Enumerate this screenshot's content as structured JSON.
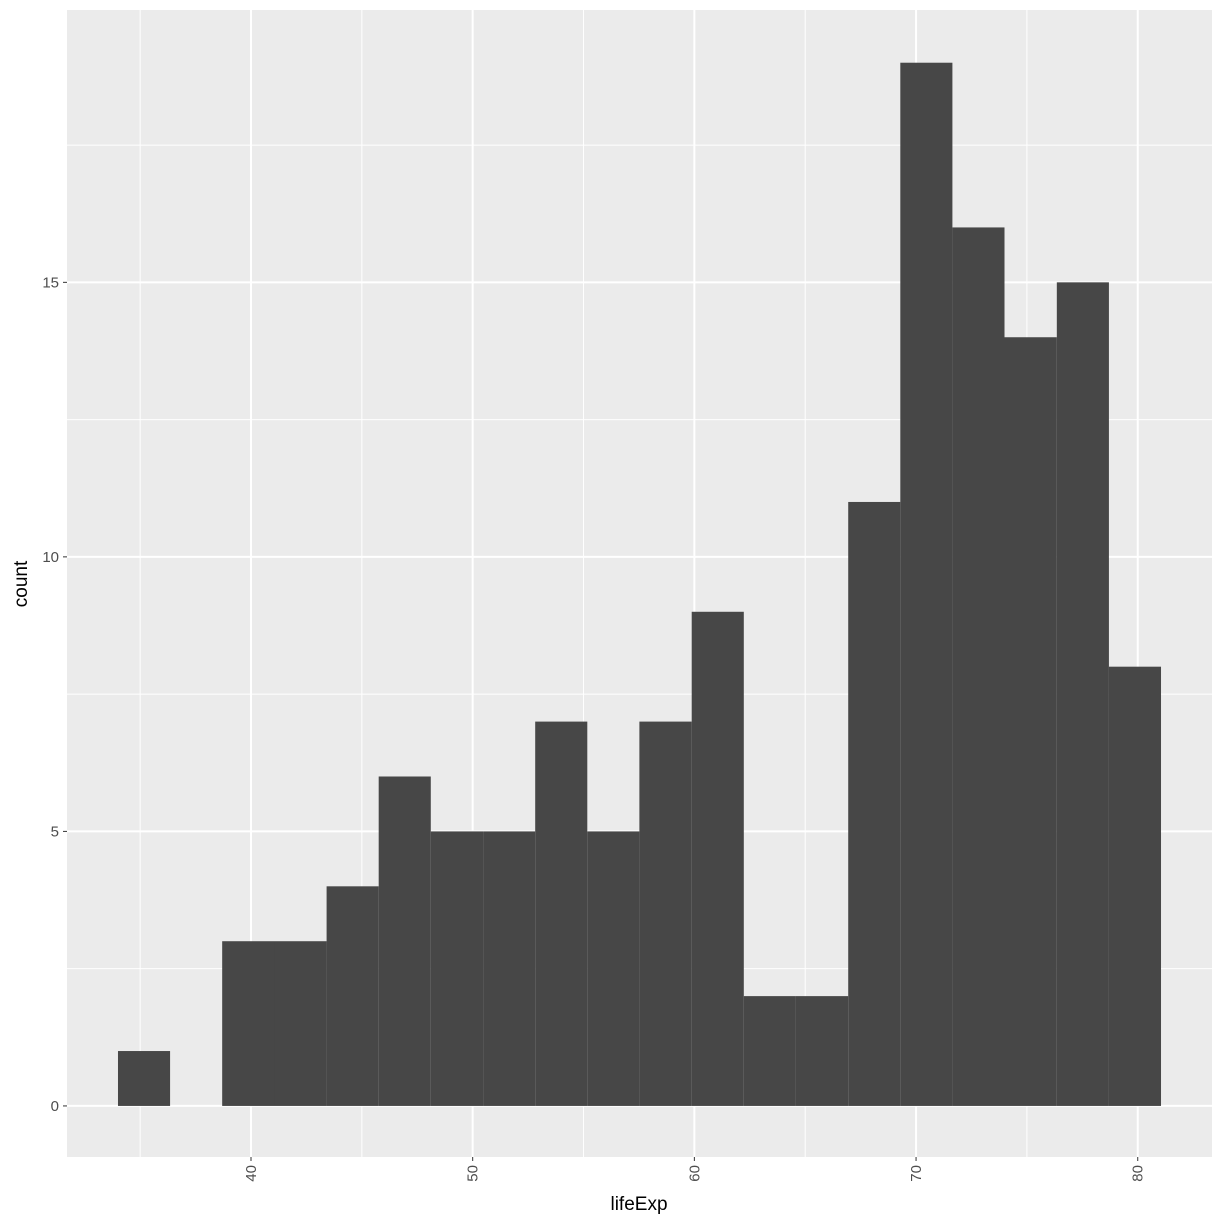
{
  "chart_data": {
    "type": "histogram",
    "x_label": "lifeExp",
    "y_label": "count",
    "bins": [
      34.0,
      36.35,
      38.7,
      41.06,
      43.41,
      45.76,
      48.11,
      50.47,
      52.82,
      55.17,
      57.52,
      59.88,
      62.23,
      64.58,
      66.94,
      69.29,
      71.64,
      73.99,
      76.35,
      78.7,
      81.05
    ],
    "values": [
      1,
      0,
      3,
      3,
      4,
      6,
      5,
      5,
      7,
      5,
      7,
      9,
      2,
      2,
      11,
      19,
      16,
      14,
      15,
      8
    ],
    "color": "#474747",
    "xlim": [
      31.7,
      83.35
    ],
    "xticks": [
      40,
      50,
      60,
      70,
      80
    ],
    "ylim": [
      -0.93,
      19.96
    ],
    "yticks": [
      0,
      5,
      10,
      15
    ],
    "grid": true
  }
}
